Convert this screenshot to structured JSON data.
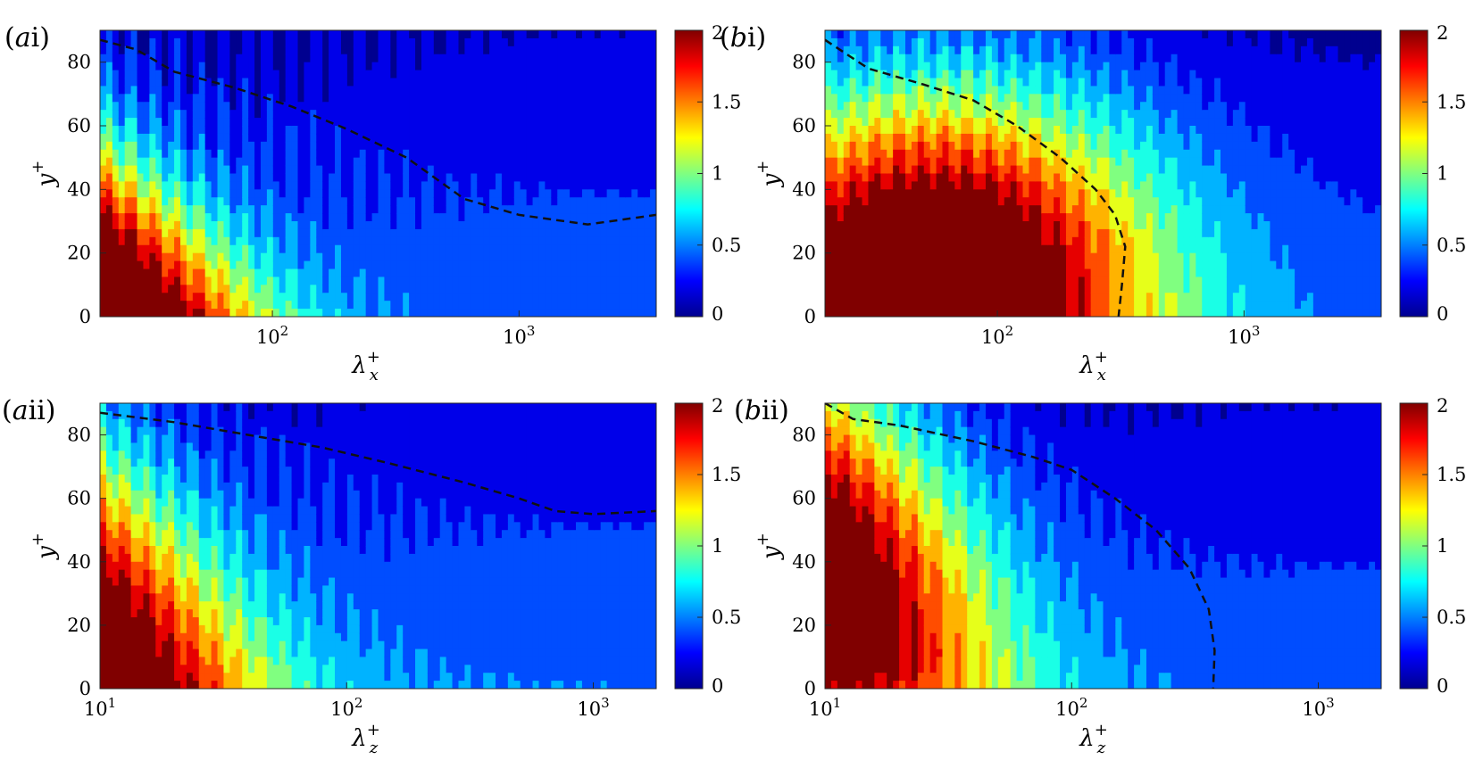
{
  "colormap": [
    "#00008f",
    "#0000ff",
    "#0080ff",
    "#00ffff",
    "#80ff80",
    "#ffff00",
    "#ff8000",
    "#ff0000",
    "#800000"
  ],
  "chart_data": [
    {
      "panel": "(ai)",
      "label": {
        "open": "(",
        "italic": "a",
        "rest": "i)"
      },
      "type": "heatmap",
      "xlabel": {
        "base": "λ",
        "sup": "+",
        "sub": "x"
      },
      "ylabel": {
        "base": "y",
        "sup": "+"
      },
      "xscale": "log",
      "xlim": [
        20,
        3600
      ],
      "ylim": [
        0,
        90
      ],
      "xticks": [
        {
          "value": 100,
          "label": "10",
          "exp": "2"
        },
        {
          "value": 1000,
          "label": "10",
          "exp": "3"
        }
      ],
      "yticks": [
        0,
        20,
        40,
        60,
        80
      ],
      "colorbar": {
        "range": [
          0,
          2
        ],
        "ticks": [
          "0",
          "0.5",
          "1",
          "1.5",
          "2"
        ]
      },
      "field": {
        "peak_x": 20,
        "peak_y": 15,
        "sx": 2.6,
        "sy": 95,
        "amp": 2.2,
        "base": 0.45,
        "tilt": 30,
        "ripple": 0.18
      },
      "dashed_line": [
        [
          20,
          87
        ],
        [
          28,
          84
        ],
        [
          40,
          77
        ],
        [
          70,
          72
        ],
        [
          120,
          66
        ],
        [
          200,
          59
        ],
        [
          350,
          50
        ],
        [
          600,
          37
        ],
        [
          1000,
          32
        ],
        [
          1900,
          29
        ],
        [
          3600,
          32
        ]
      ]
    },
    {
      "panel": "(bi)",
      "label": {
        "open": "(",
        "italic": "b",
        "rest": "i)"
      },
      "type": "heatmap",
      "xlabel": {
        "base": "λ",
        "sup": "+",
        "sub": "x"
      },
      "ylabel": {
        "base": "y",
        "sup": "+"
      },
      "xscale": "log",
      "xlim": [
        20,
        3600
      ],
      "ylim": [
        0,
        90
      ],
      "xticks": [
        {
          "value": 100,
          "label": "10",
          "exp": "2"
        },
        {
          "value": 1000,
          "label": "10",
          "exp": "3"
        }
      ],
      "yticks": [
        0,
        20,
        40,
        60,
        80
      ],
      "colorbar": {
        "range": [
          0,
          2
        ],
        "ticks": [
          "0",
          "0.5",
          "1",
          "1.5",
          "2"
        ]
      },
      "field": {
        "peak_x": 55,
        "peak_y": 10,
        "sx": 1.3,
        "sy": 70,
        "amp": 2.3,
        "base": 0.4,
        "tilt": 0,
        "ripple": 0.15
      },
      "dashed_line": [
        [
          20,
          87
        ],
        [
          30,
          78
        ],
        [
          50,
          73
        ],
        [
          80,
          68
        ],
        [
          120,
          60
        ],
        [
          180,
          50
        ],
        [
          250,
          40
        ],
        [
          300,
          32
        ],
        [
          330,
          22
        ],
        [
          320,
          10
        ],
        [
          310,
          0
        ]
      ]
    },
    {
      "panel": "(aii)",
      "label": {
        "open": "(",
        "italic": "a",
        "rest": "ii)"
      },
      "type": "heatmap",
      "xlabel": {
        "base": "λ",
        "sup": "+",
        "sub": "z"
      },
      "ylabel": {
        "base": "y",
        "sup": "+"
      },
      "xscale": "log",
      "xlim": [
        10,
        1800
      ],
      "ylim": [
        0,
        90
      ],
      "xticks": [
        {
          "value": 10,
          "label": "10",
          "exp": "1"
        },
        {
          "value": 100,
          "label": "10",
          "exp": "2"
        },
        {
          "value": 1000,
          "label": "10",
          "exp": "3"
        }
      ],
      "yticks": [
        0,
        20,
        40,
        60,
        80
      ],
      "colorbar": {
        "range": [
          0,
          2
        ],
        "ticks": [
          "0",
          "0.5",
          "1",
          "1.5",
          "2"
        ]
      },
      "field": {
        "peak_x": 10,
        "peak_y": 20,
        "sx": 2.4,
        "sy": 100,
        "amp": 2.0,
        "base": 0.5,
        "tilt": 20,
        "ripple": 0.16
      },
      "dashed_line": [
        [
          10,
          87
        ],
        [
          20,
          84
        ],
        [
          40,
          80
        ],
        [
          80,
          76
        ],
        [
          150,
          71
        ],
        [
          300,
          65
        ],
        [
          500,
          60
        ],
        [
          700,
          56
        ],
        [
          1000,
          55
        ],
        [
          1800,
          56
        ]
      ]
    },
    {
      "panel": "(bii)",
      "label": {
        "open": "(",
        "italic": "b",
        "rest": "ii)"
      },
      "type": "heatmap",
      "xlabel": {
        "base": "λ",
        "sup": "+",
        "sub": "z"
      },
      "ylabel": {
        "base": "y",
        "sup": "+"
      },
      "xscale": "log",
      "xlim": [
        10,
        1800
      ],
      "ylim": [
        0,
        90
      ],
      "xticks": [
        {
          "value": 10,
          "label": "10",
          "exp": "1"
        },
        {
          "value": 100,
          "label": "10",
          "exp": "2"
        },
        {
          "value": 1000,
          "label": "10",
          "exp": "3"
        }
      ],
      "yticks": [
        0,
        20,
        40,
        60,
        80
      ],
      "colorbar": {
        "range": [
          0,
          2
        ],
        "ticks": [
          "0",
          "0.5",
          "1",
          "1.5",
          "2"
        ]
      },
      "field": {
        "peak_x": 12,
        "peak_y": 45,
        "sx": 2.1,
        "sy": 85,
        "amp": 2.2,
        "base": 0.45,
        "tilt": 15,
        "ripple": 0.14
      },
      "dashed_line": [
        [
          10,
          90
        ],
        [
          13,
          85
        ],
        [
          20,
          83
        ],
        [
          40,
          78
        ],
        [
          70,
          73
        ],
        [
          100,
          69
        ],
        [
          150,
          60
        ],
        [
          220,
          50
        ],
        [
          300,
          38
        ],
        [
          360,
          25
        ],
        [
          380,
          12
        ],
        [
          375,
          0
        ]
      ]
    }
  ]
}
